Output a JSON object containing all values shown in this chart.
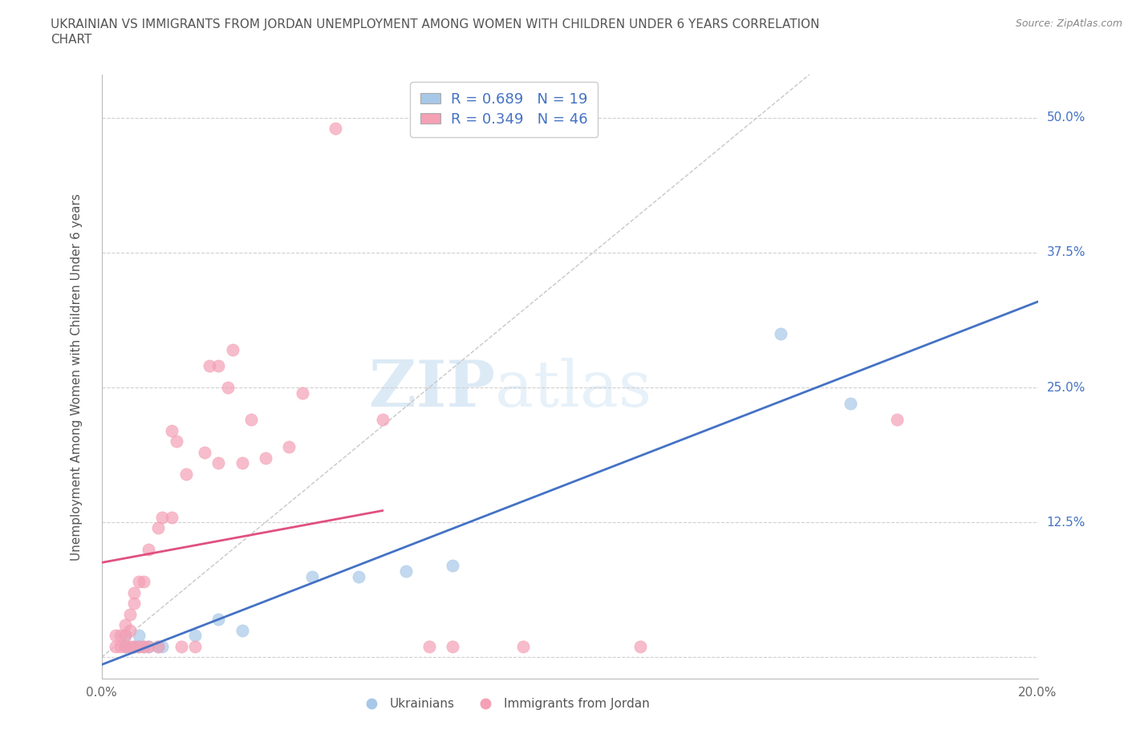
{
  "title": "UKRAINIAN VS IMMIGRANTS FROM JORDAN UNEMPLOYMENT AMONG WOMEN WITH CHILDREN UNDER 6 YEARS CORRELATION\nCHART",
  "source": "Source: ZipAtlas.com",
  "ylabel": "Unemployment Among Women with Children Under 6 years",
  "xlim": [
    0.0,
    0.2
  ],
  "ylim": [
    -0.02,
    0.54
  ],
  "x_ticks": [
    0.0,
    0.05,
    0.1,
    0.15,
    0.2
  ],
  "x_tick_labels": [
    "0.0%",
    "",
    "",
    "",
    "20.0%"
  ],
  "y_ticks": [
    0.0,
    0.125,
    0.25,
    0.375,
    0.5
  ],
  "y_tick_labels": [
    "",
    "12.5%",
    "25.0%",
    "37.5%",
    "50.0%"
  ],
  "ukrainians_x": [
    0.005,
    0.005,
    0.005,
    0.007,
    0.008,
    0.008,
    0.009,
    0.01,
    0.012,
    0.013,
    0.02,
    0.025,
    0.03,
    0.045,
    0.055,
    0.065,
    0.075,
    0.145,
    0.16
  ],
  "ukrainians_y": [
    0.01,
    0.01,
    0.02,
    0.01,
    0.01,
    0.02,
    0.01,
    0.01,
    0.01,
    0.01,
    0.02,
    0.035,
    0.025,
    0.075,
    0.075,
    0.08,
    0.085,
    0.3,
    0.235
  ],
  "jordan_x": [
    0.003,
    0.003,
    0.004,
    0.004,
    0.005,
    0.005,
    0.005,
    0.006,
    0.006,
    0.006,
    0.007,
    0.007,
    0.007,
    0.008,
    0.008,
    0.009,
    0.009,
    0.01,
    0.01,
    0.012,
    0.012,
    0.013,
    0.015,
    0.015,
    0.016,
    0.017,
    0.018,
    0.02,
    0.022,
    0.023,
    0.025,
    0.025,
    0.027,
    0.028,
    0.03,
    0.032,
    0.035,
    0.04,
    0.043,
    0.05,
    0.06,
    0.07,
    0.075,
    0.09,
    0.115,
    0.17
  ],
  "jordan_y": [
    0.01,
    0.02,
    0.01,
    0.02,
    0.01,
    0.02,
    0.03,
    0.01,
    0.025,
    0.04,
    0.01,
    0.05,
    0.06,
    0.01,
    0.07,
    0.01,
    0.07,
    0.01,
    0.1,
    0.01,
    0.12,
    0.13,
    0.13,
    0.21,
    0.2,
    0.01,
    0.17,
    0.01,
    0.19,
    0.27,
    0.27,
    0.18,
    0.25,
    0.285,
    0.18,
    0.22,
    0.185,
    0.195,
    0.245,
    0.49,
    0.22,
    0.01,
    0.01,
    0.01,
    0.01,
    0.22
  ],
  "ukr_color": "#a8c8e8",
  "jordan_color": "#f4a0b5",
  "ukr_line_color": "#4472c4",
  "jordan_line_color": "#e05080",
  "R_ukr": 0.689,
  "N_ukr": 19,
  "R_jordan": 0.349,
  "N_jordan": 46,
  "watermark_zip": "ZIP",
  "watermark_atlas": "atlas",
  "background_color": "#ffffff",
  "grid_color": "#d0d0d0"
}
